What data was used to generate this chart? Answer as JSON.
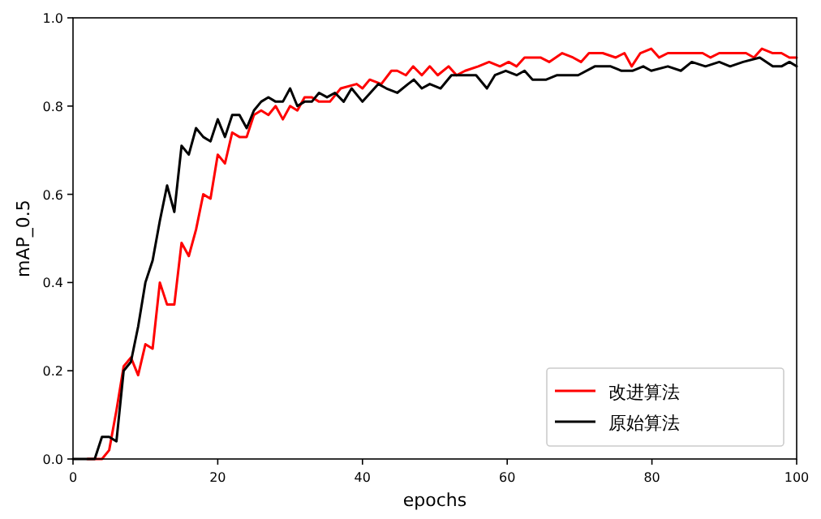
{
  "chart_data": {
    "type": "line",
    "xlabel": "epochs",
    "ylabel": "mAP_0.5",
    "xlim": [
      0,
      100
    ],
    "ylim": [
      0,
      1
    ],
    "xticks": [
      0,
      20,
      40,
      60,
      80,
      100
    ],
    "yticks": [
      {
        "value": 0,
        "label": "0.0"
      },
      {
        "value": 0.2,
        "label": "0.2"
      },
      {
        "value": 0.4,
        "label": "0.4"
      },
      {
        "value": 0.6,
        "label": "0.6"
      },
      {
        "value": 0.8,
        "label": "0.8"
      },
      {
        "value": 1,
        "label": "1.0"
      }
    ],
    "legend": "bottom right",
    "series": [
      {
        "name": "改进算法",
        "color": "#ff0000",
        "x": [
          2,
          3,
          4,
          5,
          6,
          7,
          8,
          9,
          10,
          11,
          12,
          13,
          14,
          15,
          16,
          17,
          18,
          19,
          20,
          21,
          22,
          23,
          24,
          25,
          26,
          27,
          28,
          29,
          30,
          31,
          32,
          33,
          34,
          35.5,
          37,
          39.2,
          40,
          41,
          42.6,
          44,
          44.8,
          46,
          47,
          48.2,
          49.3,
          50.4,
          51.9,
          53,
          54.2,
          56,
          57.5,
          59,
          60.2,
          61.3,
          62.4,
          63.5,
          64.6,
          65.8,
          67.6,
          69.1,
          70.2,
          71.3,
          73.2,
          75,
          76.2,
          77.2,
          78.4,
          79.9,
          81,
          82.2,
          83.7,
          85.5,
          87,
          88.1,
          89.3,
          91.5,
          93,
          94.1,
          95.2,
          96.7,
          97.9,
          99,
          100
        ],
        "values": [
          0,
          0,
          0,
          0.02,
          0.11,
          0.21,
          0.23,
          0.19,
          0.26,
          0.25,
          0.4,
          0.35,
          0.35,
          0.49,
          0.46,
          0.52,
          0.6,
          0.59,
          0.69,
          0.67,
          0.74,
          0.73,
          0.73,
          0.78,
          0.79,
          0.78,
          0.8,
          0.77,
          0.8,
          0.79,
          0.82,
          0.82,
          0.81,
          0.81,
          0.84,
          0.85,
          0.84,
          0.86,
          0.85,
          0.88,
          0.88,
          0.87,
          0.89,
          0.87,
          0.89,
          0.87,
          0.89,
          0.87,
          0.88,
          0.89,
          0.9,
          0.89,
          0.9,
          0.89,
          0.91,
          0.91,
          0.91,
          0.9,
          0.92,
          0.91,
          0.9,
          0.92,
          0.92,
          0.91,
          0.92,
          0.89,
          0.92,
          0.93,
          0.91,
          0.92,
          0.92,
          0.92,
          0.92,
          0.91,
          0.92,
          0.92,
          0.92,
          0.91,
          0.93,
          0.92,
          0.92,
          0.91,
          0.91
        ]
      },
      {
        "name": "原始算法",
        "color": "#000000",
        "x": [
          0,
          1,
          2,
          3,
          4,
          5,
          6,
          7,
          8,
          9,
          10,
          11,
          12,
          13,
          14,
          15,
          16,
          17,
          18,
          19,
          20,
          21,
          22,
          23,
          24,
          25,
          26,
          27,
          28,
          29,
          30,
          31,
          32,
          33,
          34,
          35.1,
          36.2,
          37.4,
          38.5,
          40,
          42.2,
          43.3,
          44.8,
          46.3,
          47.1,
          48.2,
          49.3,
          50.8,
          52.3,
          54.2,
          55.7,
          57.2,
          58.3,
          59.8,
          61.3,
          62.4,
          63.5,
          65.4,
          66.9,
          68,
          69.8,
          72.1,
          74.3,
          75.8,
          77.3,
          78.8,
          79.9,
          82.2,
          84,
          85.5,
          87.4,
          89.3,
          90.8,
          92.6,
          94.9,
          96.7,
          97.9,
          99,
          100
        ],
        "values": [
          0,
          0,
          0,
          0,
          0.05,
          0.05,
          0.04,
          0.2,
          0.22,
          0.3,
          0.4,
          0.45,
          0.54,
          0.62,
          0.56,
          0.71,
          0.69,
          0.75,
          0.73,
          0.72,
          0.77,
          0.73,
          0.78,
          0.78,
          0.75,
          0.79,
          0.81,
          0.82,
          0.81,
          0.81,
          0.84,
          0.8,
          0.81,
          0.81,
          0.83,
          0.82,
          0.83,
          0.81,
          0.84,
          0.81,
          0.85,
          0.84,
          0.83,
          0.85,
          0.86,
          0.84,
          0.85,
          0.84,
          0.87,
          0.87,
          0.87,
          0.84,
          0.87,
          0.88,
          0.87,
          0.88,
          0.86,
          0.86,
          0.87,
          0.87,
          0.87,
          0.89,
          0.89,
          0.88,
          0.88,
          0.89,
          0.88,
          0.89,
          0.88,
          0.9,
          0.89,
          0.9,
          0.89,
          0.9,
          0.91,
          0.89,
          0.89,
          0.9,
          0.89
        ]
      }
    ]
  }
}
